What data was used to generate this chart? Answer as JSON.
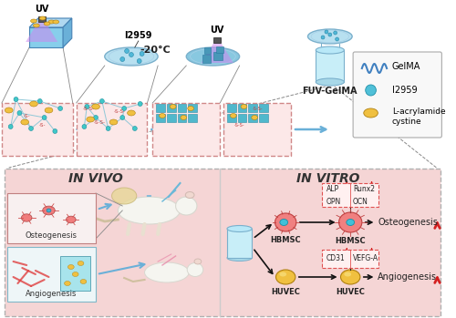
{
  "fig_width": 5.0,
  "fig_height": 3.49,
  "dpi": 100,
  "bg_color": "#ffffff",
  "uv_label": "UV",
  "i2959_label": "I2959",
  "temp_label": "-20°C",
  "fuv_label": "FUV-GelMA",
  "legend_gelma": "GelMA",
  "legend_i2959": "I2959",
  "legend_lacry": "L-acrylamide\ncystine",
  "invivo_title": "IN VIVO",
  "invitro_title": "IN VITRO",
  "osteogenesis_label": "Osteogenesis",
  "angiogenesis_label": "Angiogenesis",
  "hbmsc_label": "HBMSC",
  "huvec_label": "HUVEC",
  "alp_label": "ALP",
  "runx2_label": "Runx2",
  "opn_label": "OPN",
  "ocn_label": "OCN",
  "cd31_label": "CD31",
  "vefga_label": "VEFG-A",
  "arrow_blue": "#6ab0d8",
  "arrow_black": "#111111",
  "red_color": "#d42020",
  "pink_bg": "#f5d0d0",
  "teal_color": "#70c8d0",
  "yellow_color": "#f0c040",
  "petri_color": "#b8e0f0",
  "petri_edge": "#7ab0cc",
  "box_dashed_color": "#d08888",
  "lamp_color": "#555555",
  "beam_color": "#cc88ee",
  "slab_front": "#87CEEB",
  "slab_top": "#b0d8f0",
  "slab_right": "#6ab0d8",
  "node_teal": "#40c8c8",
  "block_teal": "#50b8cc",
  "salmon_cell": "#f08080",
  "cyan_organelle": "#40c0d8"
}
